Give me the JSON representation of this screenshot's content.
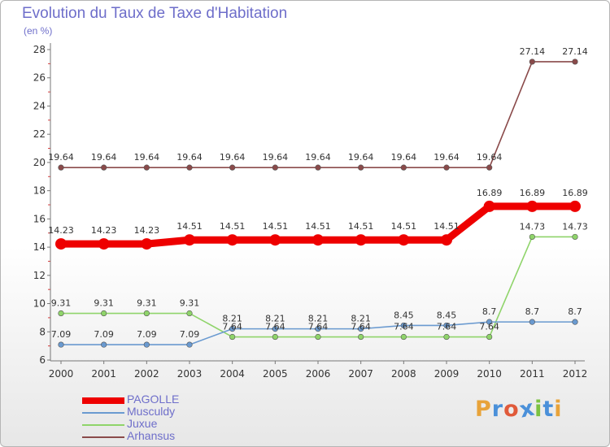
{
  "chart_data": {
    "type": "line",
    "title": "Evolution du Taux de Taxe d'Habitation",
    "ylabel": "(en %)",
    "xlabel": "",
    "ylim": [
      6,
      28
    ],
    "yticks": [
      6,
      8,
      10,
      12,
      14,
      16,
      18,
      20,
      22,
      24,
      26,
      28
    ],
    "categories": [
      "2000",
      "2001",
      "2002",
      "2003",
      "2004",
      "2005",
      "2006",
      "2007",
      "2008",
      "2009",
      "2010",
      "2011",
      "2012"
    ],
    "series": [
      {
        "name": "PAGOLLE",
        "color": "#ee0000",
        "values": [
          14.23,
          14.23,
          14.23,
          14.51,
          14.51,
          14.51,
          14.51,
          14.51,
          14.51,
          14.51,
          16.89,
          16.89,
          16.89
        ],
        "labels": [
          "14.23",
          "14.23",
          "14.23",
          "14.51",
          "14.51",
          "14.51",
          "14.51",
          "14.51",
          "14.51",
          "14.51",
          "16.89",
          "16.89",
          "16.89"
        ]
      },
      {
        "name": "Musculdy",
        "color": "#6a9ad0",
        "values": [
          7.09,
          7.09,
          7.09,
          7.09,
          8.21,
          8.21,
          8.21,
          8.21,
          8.45,
          8.45,
          8.7,
          8.7,
          8.7
        ],
        "labels": [
          "7.09",
          "7.09",
          "7.09",
          "7.09",
          "8.21",
          "8.21",
          "8.21",
          "8.21",
          "8.45",
          "8.45",
          "8.7",
          "8.7",
          "8.7"
        ]
      },
      {
        "name": "Juxue",
        "color": "#8fd46a",
        "values": [
          9.31,
          9.31,
          9.31,
          9.31,
          7.64,
          7.64,
          7.64,
          7.64,
          7.64,
          7.64,
          7.64,
          14.73,
          14.73
        ],
        "labels": [
          "9.31",
          "9.31",
          "9.31",
          "9.31",
          "7.64",
          "7.64",
          "7.64",
          "7.64",
          "7.64",
          "7.64",
          "7.64",
          "14.73",
          "14.73"
        ]
      },
      {
        "name": "Arhansus",
        "color": "#8a4a4a",
        "values": [
          19.64,
          19.64,
          19.64,
          19.64,
          19.64,
          19.64,
          19.64,
          19.64,
          19.64,
          19.64,
          19.64,
          27.14,
          27.14
        ],
        "labels": [
          "19.64",
          "19.64",
          "19.64",
          "19.64",
          "19.64",
          "19.64",
          "19.64",
          "19.64",
          "19.64",
          "19.64",
          "19.64",
          "27.14",
          "27.14"
        ]
      }
    ],
    "legend": "bottom-left",
    "grid": false
  },
  "brand": {
    "letters": [
      "P",
      "r",
      "o",
      "x",
      "i",
      "t",
      "i"
    ],
    "colors": [
      "#e8a33a",
      "#4a90d9",
      "#e05a3a",
      "#4a90d9",
      "#7cc242",
      "#4a90d9",
      "#e8a33a"
    ]
  },
  "colors": {
    "title": "#6e6eca",
    "axis": "#555555"
  }
}
